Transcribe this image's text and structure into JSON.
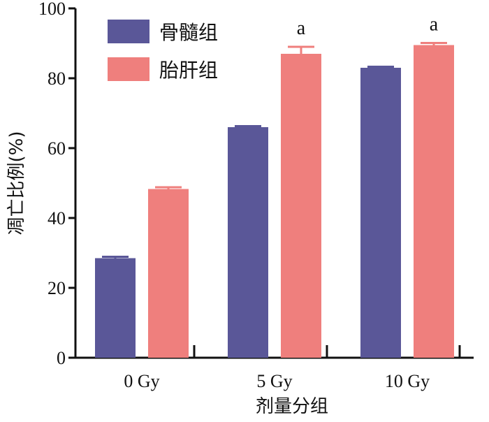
{
  "chart_data": {
    "type": "bar",
    "categories": [
      "0 Gy",
      "5 Gy",
      "10 Gy"
    ],
    "series": [
      {
        "name": "骨髓组",
        "color": "#5a5798",
        "values": [
          28.5,
          66,
          83
        ],
        "errors": [
          0.4,
          0.3,
          0.3
        ]
      },
      {
        "name": "胎肝组",
        "color": "#ef7f7d",
        "values": [
          48.3,
          87,
          89.5
        ],
        "errors": [
          0.5,
          2.0,
          0.6
        ],
        "annotations": [
          "",
          "a",
          "a"
        ]
      }
    ],
    "xlabel": "剂量分组",
    "ylabel": "凋亡比例(%)",
    "ylim": [
      0,
      100
    ],
    "yticks": [
      0,
      20,
      40,
      60,
      80,
      100
    ],
    "grid": false,
    "legend_position": "top-left"
  }
}
